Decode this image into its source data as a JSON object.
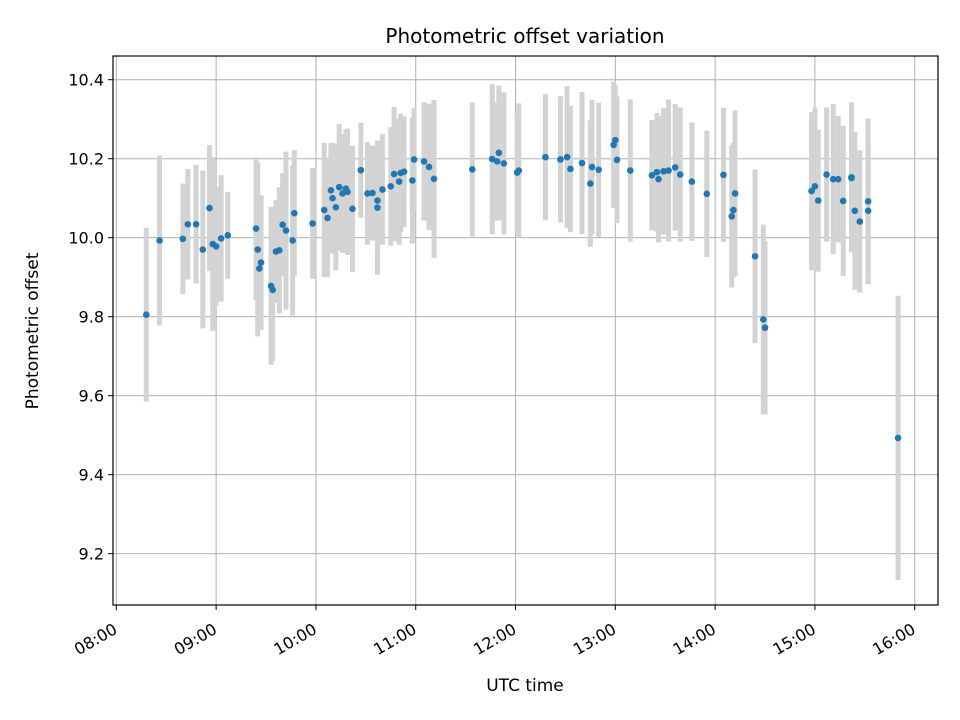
{
  "chart_data": {
    "type": "scatter",
    "title": "Photometric offset variation",
    "xlabel": "UTC time",
    "ylabel": "Photometric offset",
    "grid": true,
    "xlim": [
      "07:58",
      "16:14"
    ],
    "ylim": [
      9.07,
      10.46
    ],
    "x_ticks": [
      "08:00",
      "09:00",
      "10:00",
      "11:00",
      "12:00",
      "13:00",
      "14:00",
      "15:00",
      "16:00"
    ],
    "y_ticks": [
      "9.2",
      "9.4",
      "9.6",
      "9.8",
      "10.0",
      "10.2",
      "10.4"
    ],
    "colors": {
      "point": "#1f77b4",
      "errorbar": "#d3d3d3",
      "grid": "#b0b0b0",
      "axes": "#000000"
    },
    "x_values": [
      "08:18",
      "08:26",
      "08:40",
      "08:43",
      "08:48",
      "08:52",
      "08:56",
      "08:58",
      "09:00",
      "09:03",
      "09:07",
      "09:24",
      "09:25",
      "09:26",
      "09:27",
      "09:33",
      "09:34",
      "09:36",
      "09:38",
      "09:40",
      "09:42",
      "09:46",
      "09:47",
      "09:58",
      "10:05",
      "10:07",
      "10:09",
      "10:10",
      "10:12",
      "10:14",
      "10:16",
      "10:18",
      "10:19",
      "10:22",
      "10:27",
      "10:31",
      "10:34",
      "10:37",
      "10:37",
      "10:40",
      "10:45",
      "10:47",
      "10:50",
      "10:51",
      "10:53",
      "10:58",
      "10:59",
      "11:05",
      "11:08",
      "11:11",
      "11:34",
      "11:46",
      "11:49",
      "11:50",
      "11:53",
      "12:01",
      "12:02",
      "12:18",
      "12:27",
      "12:31",
      "12:33",
      "12:40",
      "12:45",
      "12:46",
      "12:50",
      "12:59",
      "13:00",
      "13:01",
      "13:09",
      "13:22",
      "13:25",
      "13:26",
      "13:29",
      "13:32",
      "13:36",
      "13:39",
      "13:46",
      "13:55",
      "14:05",
      "14:10",
      "14:11",
      "14:12",
      "14:24",
      "14:29",
      "14:30",
      "14:58",
      "15:00",
      "15:02",
      "15:07",
      "15:11",
      "15:14",
      "15:17",
      "15:22",
      "15:22",
      "15:24",
      "15:27",
      "15:32",
      "15:32",
      "15:50"
    ],
    "y_values": [
      9.805,
      9.993,
      9.997,
      10.034,
      10.034,
      9.97,
      10.075,
      9.984,
      9.978,
      9.998,
      10.006,
      10.023,
      9.97,
      9.922,
      9.937,
      9.878,
      9.868,
      9.965,
      9.968,
      10.033,
      10.018,
      9.993,
      10.062,
      10.036,
      10.07,
      10.05,
      10.12,
      10.1,
      10.077,
      10.128,
      10.112,
      10.124,
      10.116,
      10.073,
      10.171,
      10.112,
      10.113,
      10.094,
      10.076,
      10.122,
      10.13,
      10.161,
      10.142,
      10.164,
      10.167,
      10.145,
      10.198,
      10.193,
      10.179,
      10.149,
      10.173,
      10.199,
      10.193,
      10.215,
      10.188,
      10.165,
      10.17,
      10.204,
      10.198,
      10.204,
      10.174,
      10.189,
      10.137,
      10.179,
      10.172,
      10.235,
      10.247,
      10.197,
      10.17,
      10.158,
      10.166,
      10.148,
      10.168,
      10.17,
      10.178,
      10.16,
      10.142,
      10.111,
      10.159,
      10.054,
      10.07,
      10.112,
      9.953,
      9.793,
      9.772,
      10.118,
      10.13,
      10.094,
      10.16,
      10.148,
      10.148,
      10.093,
      10.153,
      10.151,
      10.068,
      10.041,
      10.092,
      10.068,
      9.493
    ],
    "y_err": [
      0.22,
      0.215,
      0.14,
      0.14,
      0.15,
      0.2,
      0.16,
      0.22,
      0.15,
      0.16,
      0.11,
      0.18,
      0.22,
      0.15,
      0.17,
      0.2,
      0.18,
      0.13,
      0.16,
      0.13,
      0.2,
      0.19,
      0.16,
      0.14,
      0.17,
      0.15,
      0.12,
      0.14,
      0.16,
      0.16,
      0.15,
      0.15,
      0.16,
      0.16,
      0.12,
      0.13,
      0.12,
      0.15,
      0.17,
      0.14,
      0.15,
      0.17,
      0.16,
      0.15,
      0.14,
      0.16,
      0.13,
      0.15,
      0.16,
      0.2,
      0.17,
      0.19,
      0.15,
      0.17,
      0.18,
      0.15,
      0.17,
      0.16,
      0.16,
      0.18,
      0.16,
      0.18,
      0.16,
      0.17,
      0.17,
      0.16,
      0.14,
      0.16,
      0.18,
      0.14,
      0.15,
      0.16,
      0.16,
      0.18,
      0.16,
      0.17,
      0.15,
      0.16,
      0.17,
      0.18,
      0.17,
      0.21,
      0.22,
      0.24,
      0.22,
      0.2,
      0.2,
      0.18,
      0.17,
      0.19,
      0.16,
      0.19,
      0.19,
      0.17,
      0.2,
      0.18,
      0.21,
      0.17,
      0.36
    ]
  }
}
